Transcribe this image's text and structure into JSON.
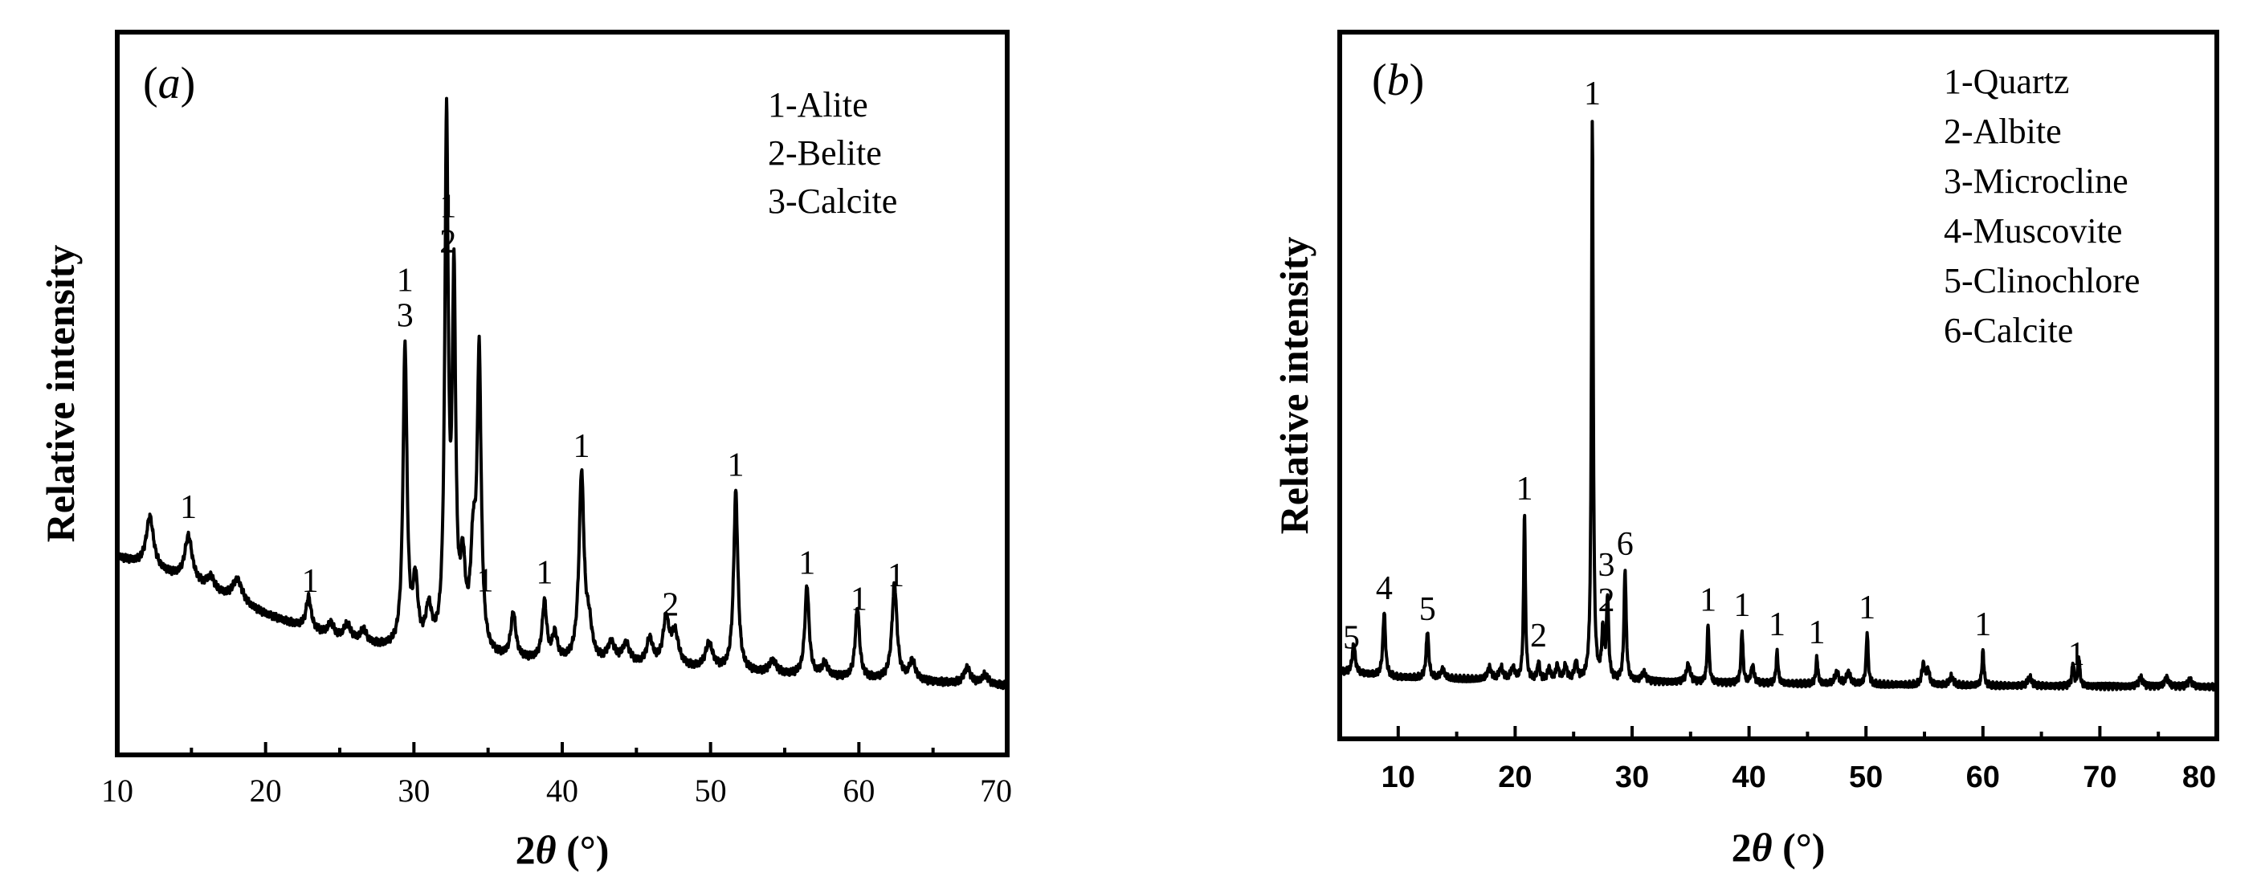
{
  "chart_data": [
    {
      "type": "line",
      "panel_tag_open": "(",
      "panel_tag_letter": "a",
      "panel_tag_close": ")",
      "xlabel_prefix": "2",
      "xlabel_symbol": "θ",
      "xlabel_suffix": " (°)",
      "ylabel": "Relative intensity",
      "xlim": [
        10,
        70
      ],
      "ylim": [
        0,
        100
      ],
      "x_ticks": [
        "10",
        "20",
        "30",
        "40",
        "50",
        "60",
        "70"
      ],
      "legend": [
        "1-Alite",
        "2-Belite",
        "3-Calcite"
      ],
      "legend_position": "top-right",
      "peak_labels": [
        {
          "x": 14.8,
          "lines": [
            "1"
          ]
        },
        {
          "x": 23.0,
          "lines": [
            "1"
          ]
        },
        {
          "x": 29.4,
          "lines": [
            "1",
            "3"
          ]
        },
        {
          "x": 32.3,
          "lines": [
            "1",
            "2"
          ]
        },
        {
          "x": 34.8,
          "lines": [
            "1"
          ]
        },
        {
          "x": 38.8,
          "lines": [
            "1"
          ]
        },
        {
          "x": 41.3,
          "lines": [
            "1"
          ]
        },
        {
          "x": 47.3,
          "lines": [
            "2"
          ]
        },
        {
          "x": 51.7,
          "lines": [
            "1"
          ]
        },
        {
          "x": 56.5,
          "lines": [
            "1"
          ]
        },
        {
          "x": 60.0,
          "lines": [
            "1"
          ]
        },
        {
          "x": 62.5,
          "lines": [
            "1"
          ]
        }
      ],
      "series": [
        {
          "background": [
            [
              10,
              24
            ],
            [
              15,
              20
            ],
            [
              20,
              15
            ],
            [
              25,
              11
            ],
            [
              30,
              9
            ],
            [
              35,
              8
            ],
            [
              40,
              7.5
            ],
            [
              45,
              7
            ],
            [
              50,
              6.3
            ],
            [
              55,
              5.6
            ],
            [
              60,
              5
            ],
            [
              65,
              4.5
            ],
            [
              70,
              4
            ]
          ],
          "peaks": [
            {
              "x": 12.2,
              "h": 8,
              "w": 0.3
            },
            {
              "x": 14.8,
              "h": 7,
              "w": 0.3
            },
            {
              "x": 16.3,
              "h": 2,
              "w": 0.3
            },
            {
              "x": 18.1,
              "h": 3.5,
              "w": 0.4
            },
            {
              "x": 22.9,
              "h": 5,
              "w": 0.2
            },
            {
              "x": 24.4,
              "h": 2,
              "w": 0.25
            },
            {
              "x": 25.5,
              "h": 2.5,
              "w": 0.3
            },
            {
              "x": 26.6,
              "h": 2,
              "w": 0.25
            },
            {
              "x": 29.4,
              "h": 47,
              "w": 0.16
            },
            {
              "x": 30.1,
              "h": 10,
              "w": 0.2
            },
            {
              "x": 31.0,
              "h": 6,
              "w": 0.25
            },
            {
              "x": 32.2,
              "h": 81,
              "w": 0.14
            },
            {
              "x": 32.7,
              "h": 55,
              "w": 0.14
            },
            {
              "x": 33.3,
              "h": 12,
              "w": 0.2
            },
            {
              "x": 34.0,
              "h": 15,
              "w": 0.22
            },
            {
              "x": 34.4,
              "h": 45,
              "w": 0.16
            },
            {
              "x": 36.7,
              "h": 7,
              "w": 0.2
            },
            {
              "x": 38.8,
              "h": 9,
              "w": 0.18
            },
            {
              "x": 39.5,
              "h": 4,
              "w": 0.2
            },
            {
              "x": 41.3,
              "h": 29,
              "w": 0.2
            },
            {
              "x": 41.8,
              "h": 5,
              "w": 0.25
            },
            {
              "x": 43.3,
              "h": 3,
              "w": 0.3
            },
            {
              "x": 44.3,
              "h": 3,
              "w": 0.3
            },
            {
              "x": 45.9,
              "h": 4,
              "w": 0.25
            },
            {
              "x": 47.0,
              "h": 7,
              "w": 0.25
            },
            {
              "x": 47.6,
              "h": 5,
              "w": 0.3
            },
            {
              "x": 49.9,
              "h": 4,
              "w": 0.3
            },
            {
              "x": 51.7,
              "h": 28,
              "w": 0.17
            },
            {
              "x": 54.2,
              "h": 2,
              "w": 0.3
            },
            {
              "x": 56.5,
              "h": 14,
              "w": 0.17
            },
            {
              "x": 57.7,
              "h": 2,
              "w": 0.25
            },
            {
              "x": 59.9,
              "h": 11,
              "w": 0.17
            },
            {
              "x": 62.4,
              "h": 15,
              "w": 0.2
            },
            {
              "x": 63.6,
              "h": 3,
              "w": 0.25
            },
            {
              "x": 67.3,
              "h": 2.5,
              "w": 0.25
            },
            {
              "x": 68.5,
              "h": 1.5,
              "w": 0.25
            }
          ]
        }
      ]
    },
    {
      "type": "line",
      "panel_tag_open": "(",
      "panel_tag_letter": "b",
      "panel_tag_close": ")",
      "xlabel_prefix": "2",
      "xlabel_symbol": "θ",
      "xlabel_suffix": " (°)",
      "ylabel": "Relative intensity",
      "xlim": [
        5,
        80
      ],
      "ylim": [
        0,
        100
      ],
      "x_ticks": [
        "10",
        "20",
        "30",
        "40",
        "50",
        "60",
        "70",
        "80"
      ],
      "legend": [
        "1-Quartz",
        "2-Albite",
        "3-Microcline",
        "4-Muscovite",
        "5-Clinochlore",
        "6-Calcite"
      ],
      "legend_position": "top-right",
      "peak_labels": [
        {
          "x": 6.0,
          "lines": [
            "5"
          ]
        },
        {
          "x": 8.8,
          "lines": [
            "4"
          ]
        },
        {
          "x": 12.5,
          "lines": [
            "5"
          ]
        },
        {
          "x": 20.8,
          "lines": [
            "1"
          ]
        },
        {
          "x": 22.0,
          "lines": [
            "2"
          ]
        },
        {
          "x": 26.6,
          "lines": [
            "1"
          ]
        },
        {
          "x": 27.8,
          "lines": [
            "3",
            "2"
          ]
        },
        {
          "x": 29.4,
          "lines": [
            "6"
          ]
        },
        {
          "x": 36.5,
          "lines": [
            "1"
          ]
        },
        {
          "x": 39.4,
          "lines": [
            "1"
          ]
        },
        {
          "x": 42.4,
          "lines": [
            "1"
          ]
        },
        {
          "x": 45.8,
          "lines": [
            "1"
          ]
        },
        {
          "x": 50.1,
          "lines": [
            "1"
          ]
        },
        {
          "x": 60.0,
          "lines": [
            "1"
          ]
        },
        {
          "x": 68.0,
          "lines": [
            "1"
          ]
        }
      ],
      "series": [
        {
          "background": [
            [
              5,
              6
            ],
            [
              10,
              5
            ],
            [
              20,
              4.5
            ],
            [
              30,
              4.3
            ],
            [
              40,
              4
            ],
            [
              50,
              3.8
            ],
            [
              60,
              3.6
            ],
            [
              70,
              3.5
            ],
            [
              80,
              3.4
            ]
          ],
          "peaks": [
            {
              "x": 6.2,
              "h": 5,
              "w": 0.15
            },
            {
              "x": 8.8,
              "h": 11,
              "w": 0.13
            },
            {
              "x": 12.5,
              "h": 8,
              "w": 0.13
            },
            {
              "x": 13.8,
              "h": 1.5,
              "w": 0.2
            },
            {
              "x": 17.8,
              "h": 2,
              "w": 0.2
            },
            {
              "x": 18.8,
              "h": 2,
              "w": 0.2
            },
            {
              "x": 19.8,
              "h": 2,
              "w": 0.2
            },
            {
              "x": 20.8,
              "h": 29,
              "w": 0.09
            },
            {
              "x": 22.0,
              "h": 3,
              "w": 0.12
            },
            {
              "x": 22.9,
              "h": 2,
              "w": 0.15
            },
            {
              "x": 23.6,
              "h": 2.5,
              "w": 0.15
            },
            {
              "x": 24.3,
              "h": 2.5,
              "w": 0.15
            },
            {
              "x": 25.2,
              "h": 3,
              "w": 0.15
            },
            {
              "x": 26.6,
              "h": 96,
              "w": 0.09
            },
            {
              "x": 27.5,
              "h": 8,
              "w": 0.12
            },
            {
              "x": 27.9,
              "h": 14,
              "w": 0.11
            },
            {
              "x": 29.4,
              "h": 19,
              "w": 0.11
            },
            {
              "x": 31.0,
              "h": 1.5,
              "w": 0.2
            },
            {
              "x": 34.8,
              "h": 3,
              "w": 0.2
            },
            {
              "x": 36.5,
              "h": 10,
              "w": 0.1
            },
            {
              "x": 39.4,
              "h": 9,
              "w": 0.1
            },
            {
              "x": 40.3,
              "h": 3,
              "w": 0.15
            },
            {
              "x": 42.4,
              "h": 5.5,
              "w": 0.1
            },
            {
              "x": 45.8,
              "h": 4.5,
              "w": 0.1
            },
            {
              "x": 47.5,
              "h": 2,
              "w": 0.2
            },
            {
              "x": 48.5,
              "h": 2,
              "w": 0.2
            },
            {
              "x": 50.1,
              "h": 9,
              "w": 0.1
            },
            {
              "x": 54.9,
              "h": 3.5,
              "w": 0.15
            },
            {
              "x": 55.3,
              "h": 2.5,
              "w": 0.15
            },
            {
              "x": 57.3,
              "h": 1.5,
              "w": 0.2
            },
            {
              "x": 60.0,
              "h": 6,
              "w": 0.1
            },
            {
              "x": 64.0,
              "h": 1.5,
              "w": 0.2
            },
            {
              "x": 67.7,
              "h": 4,
              "w": 0.1
            },
            {
              "x": 68.2,
              "h": 5,
              "w": 0.1
            },
            {
              "x": 73.5,
              "h": 1.5,
              "w": 0.2
            },
            {
              "x": 75.7,
              "h": 1.5,
              "w": 0.2
            },
            {
              "x": 77.7,
              "h": 1.2,
              "w": 0.2
            }
          ]
        }
      ]
    }
  ]
}
